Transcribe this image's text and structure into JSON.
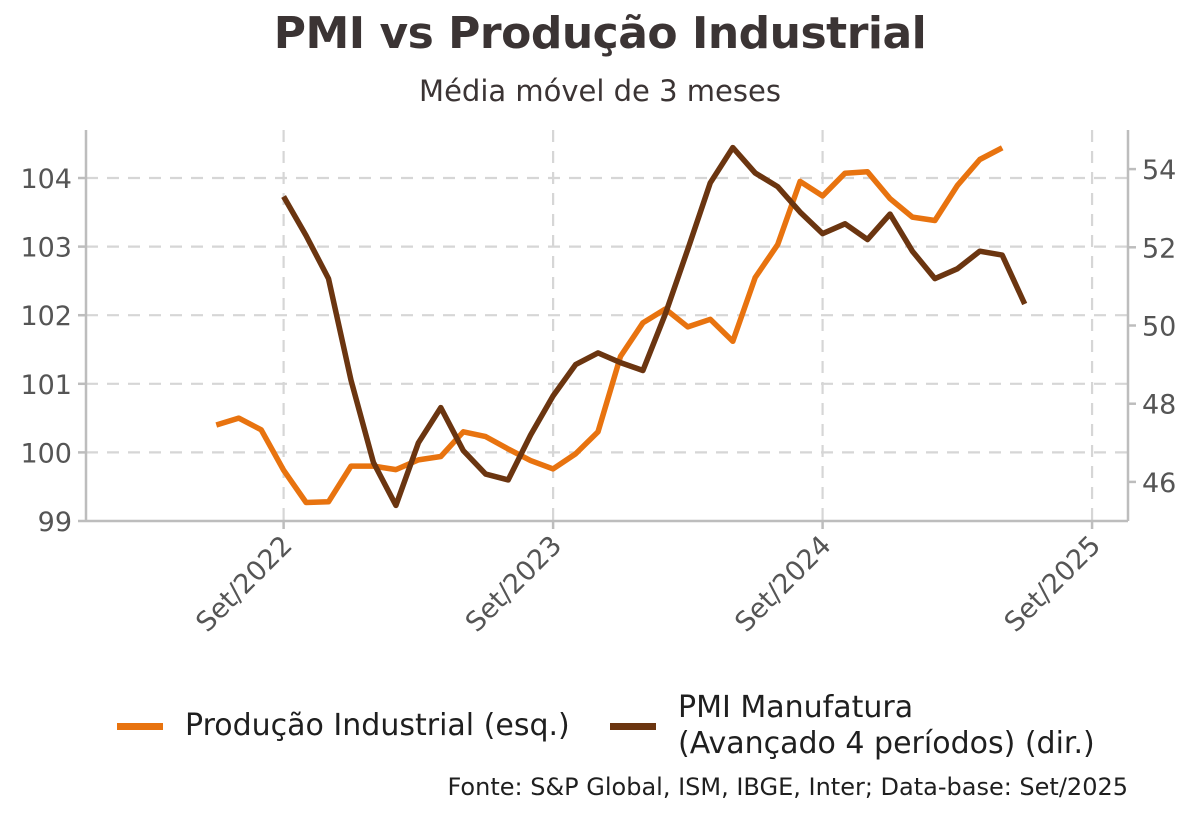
{
  "title": "PMI vs Produção Industrial",
  "subtitle": "Média móvel de 3 meses",
  "source": "Fonte: S&P Global, ISM, IBGE, Inter; Data-base: Set/2025",
  "colors": {
    "series1": "#e8730f",
    "series2": "#6b3510",
    "grid": "#d6d6d6",
    "axis": "#bdbdbd",
    "tick_text": "#555555"
  },
  "chart_data": {
    "type": "line",
    "grid": true,
    "legend_position": "bottom",
    "x_tick_labels": [
      "Set/2022",
      "Set/2023",
      "Set/2024",
      "Set/2025"
    ],
    "x_tick_index": [
      4,
      16,
      28,
      40
    ],
    "y_left": {
      "lim": [
        99,
        104.7
      ],
      "ticks": [
        99,
        100,
        101,
        102,
        103,
        104
      ]
    },
    "y_right": {
      "lim": [
        45.0,
        55.0
      ],
      "ticks": [
        46,
        48,
        50,
        52,
        54
      ]
    },
    "x_range_index": [
      -4.8,
      41.6
    ],
    "series": [
      {
        "name": "Produção Industrial (esq.)",
        "axis": "left",
        "start_index": 1,
        "values": [
          100.4,
          100.5,
          100.33,
          99.74,
          99.27,
          99.28,
          99.8,
          99.8,
          99.75,
          99.89,
          99.94,
          100.3,
          100.23,
          100.05,
          99.88,
          99.76,
          99.98,
          100.3,
          101.4,
          101.89,
          102.09,
          101.83,
          101.94,
          101.62,
          102.55,
          103.03,
          103.95,
          103.74,
          104.07,
          104.09,
          103.7,
          103.43,
          103.38,
          103.89,
          104.27,
          104.44
        ]
      },
      {
        "name": "PMI Manufatura\n(Avançado 4 períodos) (dir.)",
        "axis": "right",
        "start_index": 4,
        "values": [
          53.3,
          52.3,
          51.2,
          48.6,
          46.5,
          45.4,
          47.0,
          47.9,
          46.8,
          46.2,
          46.05,
          47.2,
          48.2,
          49.0,
          49.3,
          49.05,
          48.85,
          50.3,
          51.95,
          53.65,
          54.55,
          53.9,
          53.55,
          52.9,
          52.35,
          52.6,
          52.2,
          52.85,
          51.9,
          51.2,
          51.45,
          51.9,
          51.8,
          50.55
        ]
      }
    ]
  }
}
